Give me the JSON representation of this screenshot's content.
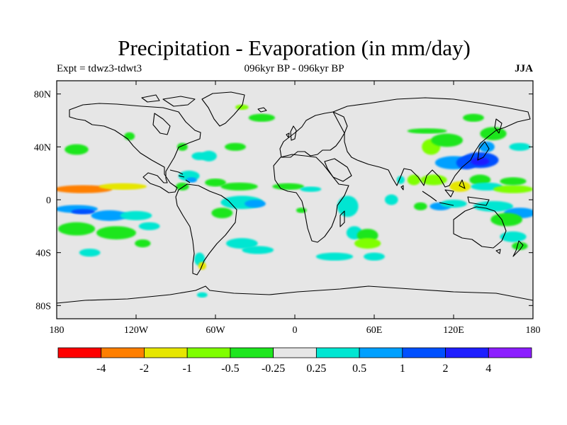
{
  "title": "Precipitation - Evaporation (in mm/day)",
  "subtitle_left": "Expt = tdwz3-tdwt3",
  "subtitle_center": "096kyr BP - 096kyr BP",
  "subtitle_right": "JJA",
  "map": {
    "projection": "cylindrical equidistant",
    "lon_range": [
      -180,
      180
    ],
    "lat_range": [
      -90,
      90
    ],
    "background_color": "#e6e6e6",
    "coastline_color": "#000000",
    "lat_ticks": [
      {
        "value": 80,
        "label": "80N"
      },
      {
        "value": 40,
        "label": "40N"
      },
      {
        "value": 0,
        "label": "0"
      },
      {
        "value": -40,
        "label": "40S"
      },
      {
        "value": -80,
        "label": "80S"
      }
    ],
    "lon_ticks": [
      {
        "value": -180,
        "label": "180"
      },
      {
        "value": -120,
        "label": "120W"
      },
      {
        "value": -60,
        "label": "60W"
      },
      {
        "value": 0,
        "label": "0"
      },
      {
        "value": 60,
        "label": "60E"
      },
      {
        "value": 120,
        "label": "120E"
      },
      {
        "value": 180,
        "label": "180"
      }
    ],
    "anomaly_patches": [
      {
        "lon": -160,
        "lat": 8,
        "rlon": 22,
        "rlat": 3,
        "level": 1
      },
      {
        "lon": -130,
        "lat": 10,
        "rlon": 18,
        "rlat": 2.5,
        "level": 2
      },
      {
        "lon": -165,
        "lat": -7,
        "rlon": 16,
        "rlat": 3,
        "level": 7
      },
      {
        "lon": -160,
        "lat": -9,
        "rlon": 9,
        "rlat": 2,
        "level": 8
      },
      {
        "lon": -140,
        "lat": -12,
        "rlon": 14,
        "rlat": 4,
        "level": 7
      },
      {
        "lon": -120,
        "lat": -12,
        "rlon": 12,
        "rlat": 3.5,
        "level": 6
      },
      {
        "lon": -165,
        "lat": -22,
        "rlon": 14,
        "rlat": 5,
        "level": 4
      },
      {
        "lon": -135,
        "lat": -25,
        "rlon": 15,
        "rlat": 5,
        "level": 4
      },
      {
        "lon": -110,
        "lat": -20,
        "rlon": 8,
        "rlat": 3,
        "level": 6
      },
      {
        "lon": -155,
        "lat": -40,
        "rlon": 8,
        "rlat": 3,
        "level": 6
      },
      {
        "lon": -115,
        "lat": -33,
        "rlon": 6,
        "rlat": 3,
        "level": 4
      },
      {
        "lon": -165,
        "lat": 38,
        "rlon": 9,
        "rlat": 4,
        "level": 4
      },
      {
        "lon": -125,
        "lat": 48,
        "rlon": 4,
        "rlat": 3,
        "level": 4
      },
      {
        "lon": -85,
        "lat": 40,
        "rlon": 4,
        "rlat": 3,
        "level": 4
      },
      {
        "lon": -72,
        "lat": 33,
        "rlon": 6,
        "rlat": 3,
        "level": 6
      },
      {
        "lon": -65,
        "lat": 33,
        "rlon": 6,
        "rlat": 4,
        "level": 6
      },
      {
        "lon": -80,
        "lat": 18,
        "rlon": 8,
        "rlat": 4,
        "level": 6
      },
      {
        "lon": -78,
        "lat": 15,
        "rlon": 4,
        "rlat": 2,
        "level": 7
      },
      {
        "lon": -85,
        "lat": 10,
        "rlon": 5,
        "rlat": 3,
        "level": 4
      },
      {
        "lon": -60,
        "lat": 13,
        "rlon": 8,
        "rlat": 3,
        "level": 4
      },
      {
        "lon": -45,
        "lat": 40,
        "rlon": 8,
        "rlat": 3,
        "level": 4
      },
      {
        "lon": -42,
        "lat": 10,
        "rlon": 14,
        "rlat": 3,
        "level": 4
      },
      {
        "lon": -40,
        "lat": -2,
        "rlon": 16,
        "rlat": 5,
        "level": 6
      },
      {
        "lon": -30,
        "lat": -3,
        "rlon": 8,
        "rlat": 3,
        "level": 7
      },
      {
        "lon": -55,
        "lat": -10,
        "rlon": 8,
        "rlat": 4,
        "level": 4
      },
      {
        "lon": -40,
        "lat": -33,
        "rlon": 12,
        "rlat": 4,
        "level": 6
      },
      {
        "lon": -28,
        "lat": -38,
        "rlon": 12,
        "rlat": 3,
        "level": 6
      },
      {
        "lon": -72,
        "lat": -45,
        "rlon": 4,
        "rlat": 5,
        "level": 6
      },
      {
        "lon": -70,
        "lat": -50,
        "rlon": 3,
        "rlat": 3,
        "level": 2
      },
      {
        "lon": -70,
        "lat": -72,
        "rlon": 4,
        "rlat": 2,
        "level": 6
      },
      {
        "lon": -25,
        "lat": 62,
        "rlon": 10,
        "rlat": 3,
        "level": 4
      },
      {
        "lon": -40,
        "lat": 70,
        "rlon": 5,
        "rlat": 2,
        "level": 3
      },
      {
        "lon": -5,
        "lat": 10,
        "rlon": 12,
        "rlat": 2.5,
        "level": 4
      },
      {
        "lon": 12,
        "lat": 8,
        "rlon": 8,
        "rlat": 2,
        "level": 6
      },
      {
        "lon": 5,
        "lat": -8,
        "rlon": 4,
        "rlat": 2,
        "level": 4
      },
      {
        "lon": 40,
        "lat": -5,
        "rlon": 8,
        "rlat": 8,
        "level": 6
      },
      {
        "lon": 45,
        "lat": -25,
        "rlon": 6,
        "rlat": 5,
        "level": 6
      },
      {
        "lon": 55,
        "lat": -27,
        "rlon": 8,
        "rlat": 5,
        "level": 4
      },
      {
        "lon": 55,
        "lat": -33,
        "rlon": 10,
        "rlat": 4,
        "level": 3
      },
      {
        "lon": 30,
        "lat": -43,
        "rlon": 14,
        "rlat": 3,
        "level": 6
      },
      {
        "lon": 60,
        "lat": -43,
        "rlon": 8,
        "rlat": 3,
        "level": 6
      },
      {
        "lon": 73,
        "lat": 0,
        "rlon": 5,
        "rlat": 4,
        "level": 6
      },
      {
        "lon": 80,
        "lat": 15,
        "rlon": 3,
        "rlat": 3,
        "level": 6
      },
      {
        "lon": 90,
        "lat": 15,
        "rlon": 5,
        "rlat": 4,
        "level": 3
      },
      {
        "lon": 95,
        "lat": -5,
        "rlon": 5,
        "rlat": 3,
        "level": 4
      },
      {
        "lon": 103,
        "lat": 40,
        "rlon": 7,
        "rlat": 6,
        "level": 3
      },
      {
        "lon": 115,
        "lat": 45,
        "rlon": 12,
        "rlat": 5,
        "level": 4
      },
      {
        "lon": 100,
        "lat": 52,
        "rlon": 15,
        "rlat": 2,
        "level": 4
      },
      {
        "lon": 120,
        "lat": 28,
        "rlon": 14,
        "rlat": 5,
        "level": 7
      },
      {
        "lon": 130,
        "lat": 28,
        "rlon": 8,
        "rlat": 5,
        "level": 8
      },
      {
        "lon": 140,
        "lat": 30,
        "rlon": 14,
        "rlat": 6,
        "level": 8
      },
      {
        "lon": 140,
        "lat": 29,
        "rlon": 7,
        "rlat": 3,
        "level": 9
      },
      {
        "lon": 145,
        "lat": 40,
        "rlon": 6,
        "rlat": 4,
        "level": 7
      },
      {
        "lon": 150,
        "lat": 50,
        "rlon": 10,
        "rlat": 5,
        "level": 4
      },
      {
        "lon": 135,
        "lat": 62,
        "rlon": 8,
        "rlat": 3,
        "level": 4
      },
      {
        "lon": 170,
        "lat": 40,
        "rlon": 8,
        "rlat": 3,
        "level": 6
      },
      {
        "lon": 105,
        "lat": 15,
        "rlon": 10,
        "rlat": 4,
        "level": 3
      },
      {
        "lon": 125,
        "lat": 10,
        "rlon": 8,
        "rlat": 4,
        "level": 2
      },
      {
        "lon": 140,
        "lat": 15,
        "rlon": 8,
        "rlat": 4,
        "level": 4
      },
      {
        "lon": 145,
        "lat": 10,
        "rlon": 12,
        "rlat": 3,
        "level": 6
      },
      {
        "lon": 165,
        "lat": 8,
        "rlon": 15,
        "rlat": 3,
        "level": 3
      },
      {
        "lon": 165,
        "lat": 14,
        "rlon": 10,
        "rlat": 3,
        "level": 4
      },
      {
        "lon": 110,
        "lat": -5,
        "rlon": 8,
        "rlat": 3,
        "level": 7
      },
      {
        "lon": 120,
        "lat": -3,
        "rlon": 10,
        "rlat": 3,
        "level": 6
      },
      {
        "lon": 150,
        "lat": -5,
        "rlon": 15,
        "rlat": 4,
        "level": 6
      },
      {
        "lon": 170,
        "lat": -10,
        "rlon": 12,
        "rlat": 4,
        "level": 7
      },
      {
        "lon": 160,
        "lat": -15,
        "rlon": 12,
        "rlat": 5,
        "level": 4
      },
      {
        "lon": 165,
        "lat": -28,
        "rlon": 10,
        "rlat": 4,
        "level": 6
      },
      {
        "lon": 170,
        "lat": -35,
        "rlon": 6,
        "rlat": 3,
        "level": 4
      }
    ]
  },
  "colorbar": {
    "colors": [
      "#ff0000",
      "#ff7f00",
      "#e6e600",
      "#7fff00",
      "#1ee61e",
      "#e6e6e6",
      "#00e6d2",
      "#00a0ff",
      "#0050ff",
      "#1e1eff",
      "#8c1eff"
    ],
    "labels": [
      "-4",
      "-2",
      "-1",
      "-0.5",
      "-0.25",
      "0.25",
      "0.5",
      "1",
      "2",
      "4"
    ]
  }
}
